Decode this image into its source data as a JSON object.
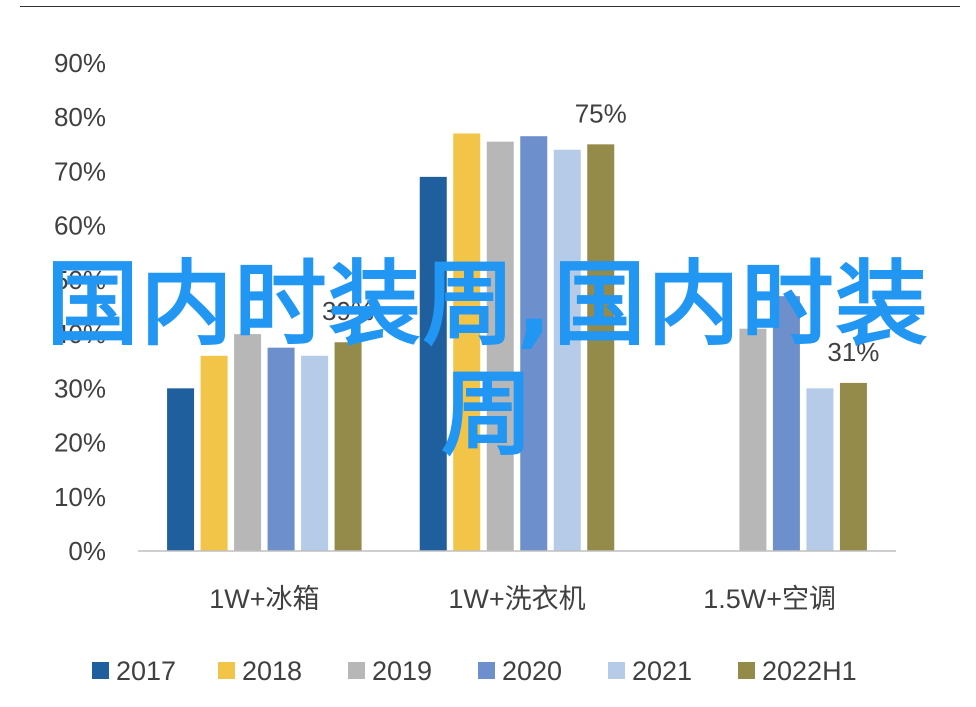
{
  "colors": {
    "2017": "#1f5f9e",
    "2018": "#f2c447",
    "2019": "#b7b7b7",
    "2020": "#6d8fcc",
    "2021": "#b5cbe8",
    "2022H1": "#948a4a",
    "axis_text": "#404040",
    "axis_line": "#bfbfbf",
    "watermark": "#2196f3"
  },
  "watermark": "国内时装周,国内时装周",
  "chart_data": {
    "type": "bar",
    "title": "",
    "xlabel": "",
    "ylabel": "",
    "ylim": [
      0,
      90
    ],
    "y_ticks": [
      "0%",
      "10%",
      "20%",
      "30%",
      "40%",
      "50%",
      "60%",
      "70%",
      "80%",
      "90%"
    ],
    "categories": [
      "1W+冰箱",
      "1W+洗衣机",
      "1.5W+空调"
    ],
    "legend_position": "bottom",
    "grid": false,
    "series": [
      {
        "name": "2017",
        "values": [
          30,
          69,
          null
        ]
      },
      {
        "name": "2018",
        "values": [
          36,
          77,
          null
        ]
      },
      {
        "name": "2019",
        "values": [
          40,
          75.5,
          41
        ]
      },
      {
        "name": "2020",
        "values": [
          37.5,
          76.5,
          47
        ]
      },
      {
        "name": "2021",
        "values": [
          36,
          74,
          30
        ]
      },
      {
        "name": "2022H1",
        "values": [
          38.5,
          75,
          31
        ]
      }
    ],
    "data_labels": [
      {
        "series": "2022H1",
        "category": "1W+冰箱",
        "text": "39%"
      },
      {
        "series": "2022H1",
        "category": "1W+洗衣机",
        "text": "75%"
      },
      {
        "series": "2022H1",
        "category": "1.5W+空调",
        "text": "31%"
      }
    ]
  }
}
